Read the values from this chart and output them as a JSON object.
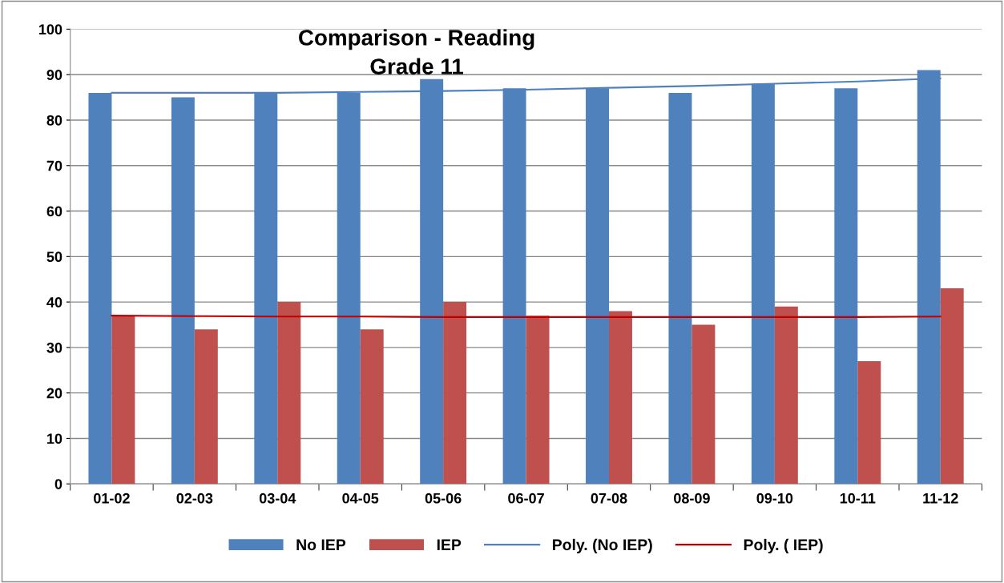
{
  "chart_data": {
    "type": "bar",
    "title": "Comparison - Reading\nGrade 11",
    "categories": [
      "01-02",
      "02-03",
      "03-04",
      "04-05",
      "05-06",
      "06-07",
      "07-08",
      "08-09",
      "09-10",
      "10-11",
      "11-12"
    ],
    "series": [
      {
        "name": "No IEP",
        "color": "#4f81bd",
        "values": [
          86,
          85,
          86,
          86,
          89,
          87,
          87,
          86,
          88,
          87,
          91
        ]
      },
      {
        "name": "IEP",
        "color": "#c0504d",
        "values": [
          37,
          34,
          40,
          34,
          40,
          37,
          38,
          35,
          39,
          27,
          43
        ]
      },
      {
        "name": "Poly. (No IEP)",
        "type": "line",
        "color": "#4f81bd",
        "values": [
          86,
          86,
          86,
          86.2,
          86.4,
          86.7,
          87.1,
          87.5,
          88,
          88.5,
          89.2
        ]
      },
      {
        "name": "Poly. ( IEP)",
        "type": "line",
        "color": "#c00000",
        "values": [
          37,
          36.9,
          36.8,
          36.8,
          36.7,
          36.7,
          36.7,
          36.7,
          36.7,
          36.7,
          36.8
        ]
      }
    ],
    "ylim": [
      0,
      100
    ],
    "yticks": [
      0,
      10,
      20,
      30,
      40,
      50,
      60,
      70,
      80,
      90,
      100
    ],
    "grid": "y",
    "legend": "bottom"
  }
}
